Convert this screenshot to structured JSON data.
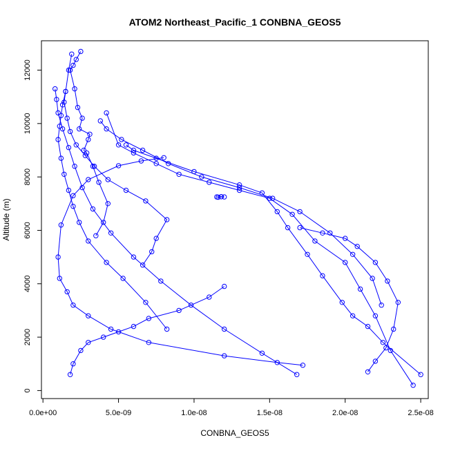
{
  "chart_data": {
    "type": "scatter",
    "title": "ATOM2 Northeast_Pacific_1 CONBNA_GEOS5",
    "xlabel": "CONBNA_GEOS5",
    "ylabel": "Altitude (m)",
    "xlim": [
      -1e-10,
      2.55e-08
    ],
    "ylim": [
      -300,
      13100
    ],
    "xticks": [
      0,
      5e-09,
      1e-08,
      1.5e-08,
      2e-08,
      2.5e-08
    ],
    "xtick_labels": [
      "0.0e+00",
      "5.0e-09",
      "1.0e-08",
      "1.5e-08",
      "2.0e-08",
      "2.5e-08"
    ],
    "yticks": [
      0,
      2000,
      4000,
      6000,
      8000,
      10000,
      12000
    ],
    "ytick_labels": [
      "0",
      "2000",
      "4000",
      "6000",
      "8000",
      "10000",
      "12000"
    ],
    "grid": false,
    "legend": "none",
    "colors": {
      "series": "#0000ff",
      "axes": "#000000",
      "background": "#ffffff"
    },
    "marker": "open-circle",
    "connected": true,
    "series": [
      {
        "x": [
          2.5e-09,
          2.2e-09,
          2e-09,
          1.8e-09,
          2.1e-09,
          2.3e-09,
          2.6e-09,
          2.4e-09,
          3.1e-09,
          3e-09,
          2.7e-09,
          2.9e-09,
          3.3e-09,
          3.7e-09,
          4.3e-09,
          4e-09,
          3.5e-09
        ],
        "y": [
          12700,
          12400,
          12180,
          12000,
          11300,
          10600,
          10200,
          9800,
          9600,
          9400,
          9000,
          8900,
          8400,
          7800,
          7000,
          6300,
          5800
        ]
      },
      {
        "x": [
          8e-09,
          6.5e-09,
          5e-09,
          3e-09,
          2e-09,
          1.2e-09,
          1e-09,
          1.1e-09,
          1.6e-09,
          2e-09,
          3e-09,
          4.5e-09,
          7e-09,
          1.2e-08,
          1.55e-08,
          1.72e-08
        ],
        "y": [
          8720,
          8600,
          8420,
          7900,
          7300,
          6200,
          5000,
          4200,
          3700,
          3200,
          2800,
          2300,
          1800,
          1300,
          1050,
          950
        ]
      },
      {
        "x": [
          1.2e-08,
          1.1e-08,
          9e-09,
          7e-09,
          6e-09,
          5e-09,
          4e-09,
          3e-09,
          2.5e-09,
          2e-09,
          1.8e-09
        ],
        "y": [
          3900,
          3500,
          3000,
          2700,
          2400,
          2200,
          2000,
          1800,
          1500,
          1000,
          600
        ]
      },
      {
        "x": [
          4.2e-09,
          5e-09,
          6e-09,
          7.5e-09,
          9e-09,
          1.1e-08,
          1.3e-08,
          1.5e-08,
          1.65e-08,
          1.8e-08,
          2e-08,
          2.1e-08,
          2.2e-08,
          2.3e-08,
          2.45e-08
        ],
        "y": [
          10400,
          9200,
          8900,
          8500,
          8100,
          7800,
          7500,
          7200,
          6600,
          5600,
          4800,
          3800,
          2800,
          1500,
          200
        ]
      },
      {
        "x": [
          5.5e-09,
          6e-09,
          7.5e-09,
          1e-08,
          1.3e-08,
          1.45e-08,
          1.55e-08,
          1.62e-08,
          1.75e-08,
          1.85e-08,
          1.98e-08,
          2.05e-08,
          2.15e-08,
          2.25e-08,
          2.5e-08
        ],
        "y": [
          9200,
          9000,
          8700,
          8200,
          7700,
          7400,
          6700,
          6100,
          5100,
          4300,
          3300,
          2800,
          2400,
          1800,
          600
        ]
      },
      {
        "x": [
          1.9e-09,
          1.7e-09,
          1.5e-09,
          1.3e-09,
          1.2e-09,
          1.1e-09,
          1e-09,
          1.2e-09,
          1.4e-09,
          1.7e-09,
          2e-09,
          2.4e-09,
          3e-09,
          4.2e-09,
          5.3e-09,
          6.8e-09,
          8.2e-09
        ],
        "y": [
          12600,
          12000,
          11200,
          10700,
          10300,
          9900,
          9400,
          8700,
          8100,
          7500,
          6900,
          6300,
          5600,
          4800,
          4200,
          3300,
          2300
        ]
      },
      {
        "x": [
          1.7e-08,
          1.85e-08,
          2e-08,
          2.08e-08,
          2.2e-08,
          2.28e-08,
          2.35e-08,
          2.32e-08,
          2.27e-08,
          2.2e-08,
          2.15e-08
        ],
        "y": [
          6100,
          5900,
          5700,
          5400,
          4800,
          4100,
          3300,
          2300,
          1600,
          1100,
          700
        ]
      },
      {
        "x": [
          1.5e-09,
          1.4e-09,
          1.6e-09,
          1.8e-09,
          2.2e-09,
          2.8e-09,
          3.4e-09,
          4.3e-09,
          5.5e-09,
          6.8e-09,
          8.2e-09,
          7.5e-09,
          7.2e-09,
          6.6e-09
        ],
        "y": [
          11200,
          10800,
          10200,
          9700,
          9200,
          8800,
          8400,
          7900,
          7500,
          7100,
          6400,
          5700,
          5200,
          4700
        ]
      },
      {
        "x": [
          8e-10,
          9e-10,
          1e-09,
          1.3e-09,
          1.7e-09,
          2.1e-09,
          2.6e-09,
          3.3e-09,
          4.5e-09,
          6e-09,
          7.8e-09,
          9.8e-09,
          1.2e-08,
          1.45e-08,
          1.68e-08
        ],
        "y": [
          11300,
          10900,
          10400,
          9800,
          9100,
          8400,
          7600,
          6800,
          5900,
          5000,
          4100,
          3200,
          2300,
          1400,
          600
        ]
      },
      {
        "x": [
          3.8e-09,
          4.2e-09,
          5.2e-09,
          6.6e-09,
          8.3e-09,
          1.05e-08,
          1.3e-08,
          1.52e-08,
          1.7e-08,
          1.9e-08,
          2.05e-08,
          2.18e-08,
          2.24e-08
        ],
        "y": [
          10100,
          9800,
          9400,
          9000,
          8500,
          8000,
          7600,
          7200,
          6700,
          5900,
          5100,
          4200,
          3200
        ]
      },
      {
        "x": [
          1.2e-08,
          1.18e-08,
          1.16e-08,
          1.15e-08,
          1.18e-08
        ],
        "y": [
          7250,
          7260,
          7240,
          7250,
          7260
        ]
      }
    ]
  }
}
